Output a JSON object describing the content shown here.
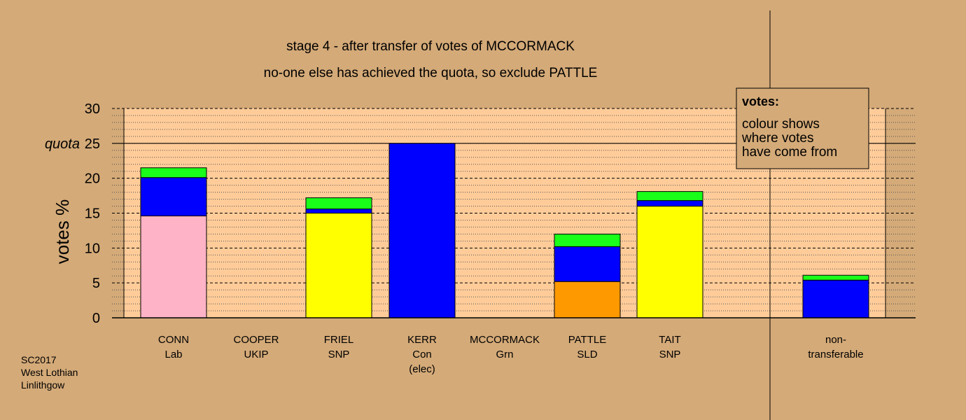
{
  "title": "stage 4 - after transfer of votes of MCCORMACK",
  "subtitle": "no-one else has achieved the quota, so exclude PATTLE",
  "footer": [
    "SC2017",
    "West Lothian",
    "Linlithgow"
  ],
  "legend": {
    "heading": "votes:",
    "lines": [
      "colour shows",
      "where votes",
      "have come from"
    ]
  },
  "colors": {
    "background": "#d4aa78",
    "plot_background": "#ffcc99",
    "Lab": "#ffb3c6",
    "Con": "#0000ff",
    "SNP": "#ffff00",
    "Grn": "#1aff1a",
    "SLD": "#ff9900"
  },
  "chart_data": {
    "type": "bar",
    "stacked": true,
    "ylabel": "votes %",
    "ylim": [
      0,
      30
    ],
    "yticks": [
      0,
      5,
      10,
      15,
      20,
      25,
      30
    ],
    "quota": {
      "label": "quota",
      "value": 25
    },
    "categories": [
      [
        "CONN",
        "Lab"
      ],
      [
        "COOPER",
        "UKIP"
      ],
      [
        "FRIEL",
        "SNP"
      ],
      [
        "KERR",
        "Con",
        "(elec)"
      ],
      [
        "MCCORMACK",
        "Grn"
      ],
      [
        "PATTLE",
        "SLD"
      ],
      [
        "TAIT",
        "SNP"
      ],
      [
        "non-",
        "transferable"
      ]
    ],
    "bars": [
      [
        {
          "color": "Lab",
          "value": 14.6
        },
        {
          "color": "Con",
          "value": 5.5
        },
        {
          "color": "Grn",
          "value": 1.4
        }
      ],
      [],
      [
        {
          "color": "SNP",
          "value": 15.0
        },
        {
          "color": "Con",
          "value": 0.6
        },
        {
          "color": "Grn",
          "value": 1.6
        }
      ],
      [
        {
          "color": "Con",
          "value": 25.0
        }
      ],
      [],
      [
        {
          "color": "SLD",
          "value": 5.2
        },
        {
          "color": "Con",
          "value": 5.0
        },
        {
          "color": "Grn",
          "value": 1.8
        }
      ],
      [
        {
          "color": "SNP",
          "value": 16.0
        },
        {
          "color": "Con",
          "value": 0.8
        },
        {
          "color": "Grn",
          "value": 1.3
        }
      ],
      [
        {
          "color": "Con",
          "value": 5.4
        },
        {
          "color": "Grn",
          "value": 0.7
        }
      ]
    ]
  }
}
